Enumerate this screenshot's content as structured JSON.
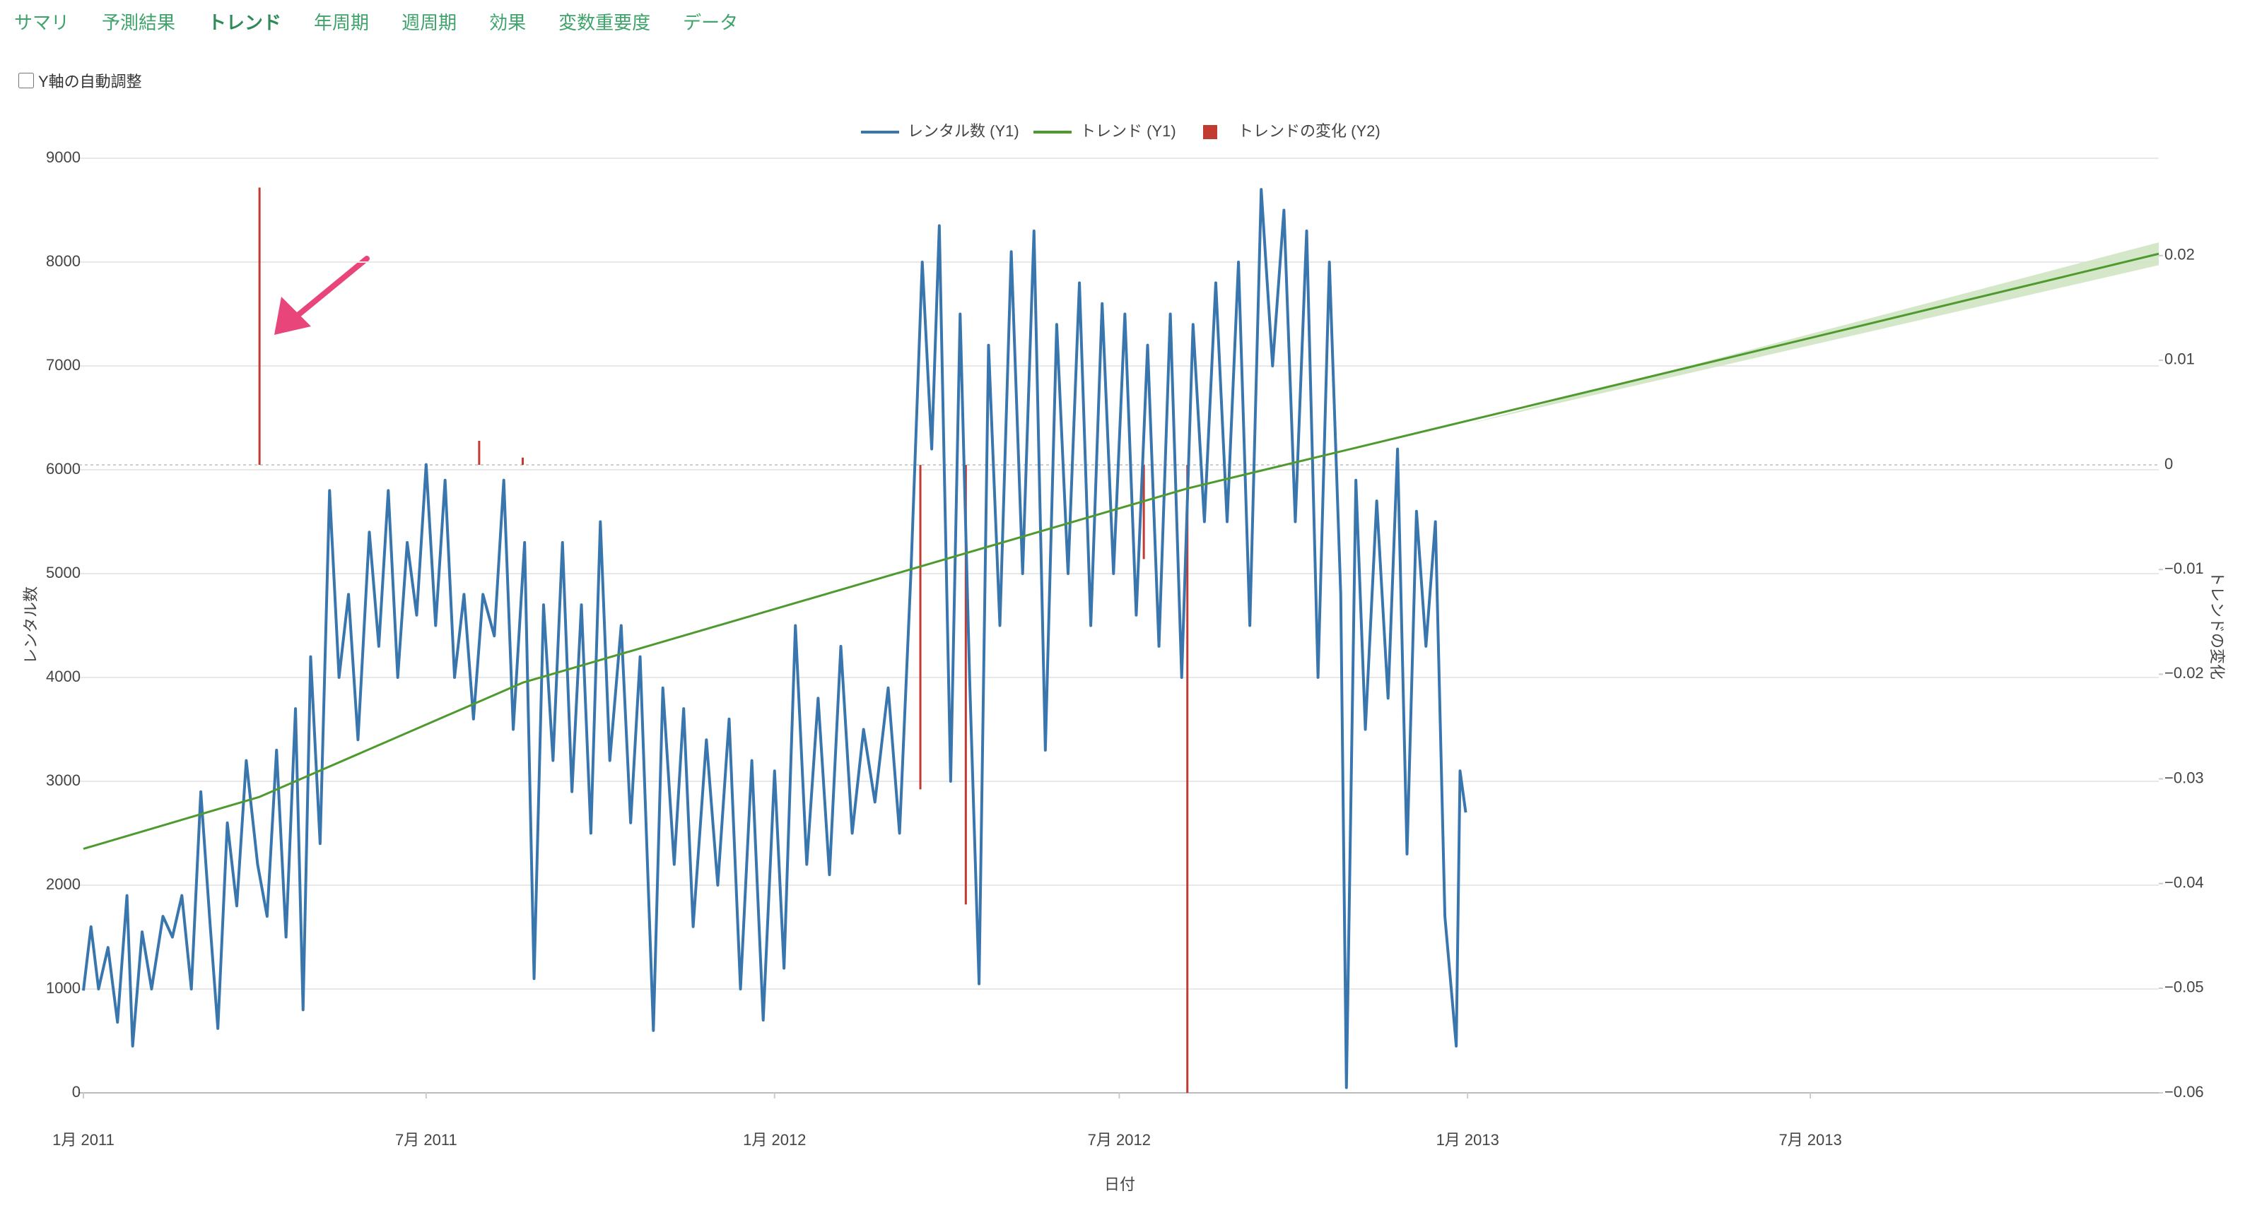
{
  "nav": {
    "tabs": [
      "サマリ",
      "予測結果",
      "トレンド",
      "年周期",
      "週周期",
      "効果",
      "変数重要度",
      "データ"
    ]
  },
  "checkbox": {
    "label": "Y軸の自動調整",
    "checked": false
  },
  "chart_data": {
    "type": "line",
    "xlabel": "日付",
    "ylabel": "レンタル数",
    "y2label": "トレンドの変化",
    "xlim": [
      "2011-01-01",
      "2014-01-01"
    ],
    "xticks": [
      {
        "value": "2011-01-01",
        "label": "1月 2011"
      },
      {
        "value": "2011-07-01",
        "label": "7月 2011"
      },
      {
        "value": "2012-01-01",
        "label": "1月 2012"
      },
      {
        "value": "2012-07-01",
        "label": "7月 2012"
      },
      {
        "value": "2013-01-01",
        "label": "1月 2013"
      },
      {
        "value": "2013-07-01",
        "label": "7月 2013"
      }
    ],
    "ylim": [
      0,
      9000
    ],
    "yticks": [
      0,
      1000,
      2000,
      3000,
      4000,
      5000,
      6000,
      7000,
      8000,
      9000
    ],
    "y2lim": [
      -0.06,
      0.0293
    ],
    "y2ticks": [
      0.02,
      0.01,
      0,
      {
        "value": -0.01,
        "label": "−0.01"
      },
      {
        "value": -0.02,
        "label": "−0.02"
      },
      {
        "value": -0.03,
        "label": "−0.03"
      },
      {
        "value": -0.04,
        "label": "−0.04"
      },
      {
        "value": -0.05,
        "label": "−0.05"
      },
      {
        "value": -0.06,
        "label": "−0.06"
      }
    ],
    "grid": true,
    "legend": "top",
    "series": [
      {
        "name": "レンタル数 (Y1)",
        "type": "line",
        "color": "#3a76ae",
        "x": [
          "2011-01-01",
          "2011-01-05",
          "2011-01-09",
          "2011-01-14",
          "2011-01-19",
          "2011-01-24",
          "2011-01-27",
          "2011-02-01",
          "2011-02-06",
          "2011-02-12",
          "2011-02-17",
          "2011-02-22",
          "2011-02-27",
          "2011-03-04",
          "2011-03-09",
          "2011-03-13",
          "2011-03-18",
          "2011-03-23",
          "2011-03-28",
          "2011-04-03",
          "2011-04-08",
          "2011-04-13",
          "2011-04-18",
          "2011-04-23",
          "2011-04-27",
          "2011-05-01",
          "2011-05-06",
          "2011-05-11",
          "2011-05-16",
          "2011-05-21",
          "2011-05-26",
          "2011-06-01",
          "2011-06-06",
          "2011-06-11",
          "2011-06-16",
          "2011-06-21",
          "2011-06-26",
          "2011-07-01",
          "2011-07-06",
          "2011-07-11",
          "2011-07-16",
          "2011-07-21",
          "2011-07-26",
          "2011-07-31",
          "2011-08-06",
          "2011-08-11",
          "2011-08-16",
          "2011-08-22",
          "2011-08-27",
          "2011-09-01",
          "2011-09-06",
          "2011-09-11",
          "2011-09-16",
          "2011-09-21",
          "2011-09-26",
          "2011-10-01",
          "2011-10-06",
          "2011-10-12",
          "2011-10-17",
          "2011-10-22",
          "2011-10-29",
          "2011-11-03",
          "2011-11-09",
          "2011-11-14",
          "2011-11-19",
          "2011-11-26",
          "2011-12-02",
          "2011-12-08",
          "2011-12-14",
          "2011-12-20",
          "2011-12-26",
          "2012-01-01",
          "2012-01-06",
          "2012-01-12",
          "2012-01-18",
          "2012-01-24",
          "2012-01-30",
          "2012-02-05",
          "2012-02-11",
          "2012-02-17",
          "2012-02-23",
          "2012-03-01",
          "2012-03-07",
          "2012-03-13",
          "2012-03-19",
          "2012-03-24",
          "2012-03-28",
          "2012-04-03",
          "2012-04-08",
          "2012-04-13",
          "2012-04-18",
          "2012-04-23",
          "2012-04-29",
          "2012-05-05",
          "2012-05-11",
          "2012-05-17",
          "2012-05-23",
          "2012-05-29",
          "2012-06-04",
          "2012-06-10",
          "2012-06-16",
          "2012-06-22",
          "2012-06-28",
          "2012-07-04",
          "2012-07-10",
          "2012-07-16",
          "2012-07-22",
          "2012-07-28",
          "2012-08-03",
          "2012-08-09",
          "2012-08-15",
          "2012-08-21",
          "2012-08-27",
          "2012-09-02",
          "2012-09-08",
          "2012-09-14",
          "2012-09-20",
          "2012-09-26",
          "2012-10-02",
          "2012-10-08",
          "2012-10-14",
          "2012-10-20",
          "2012-10-26",
          "2012-10-29",
          "2012-11-03",
          "2012-11-08",
          "2012-11-14",
          "2012-11-20",
          "2012-11-25",
          "2012-11-30",
          "2012-12-05",
          "2012-12-10",
          "2012-12-15",
          "2012-12-20",
          "2012-12-26",
          "2012-12-28",
          "2012-12-31"
        ],
        "values": [
          985,
          1600,
          1000,
          1400,
          680,
          1900,
          450,
          1550,
          1000,
          1700,
          1500,
          1900,
          1000,
          2900,
          1600,
          620,
          2600,
          1800,
          3200,
          2200,
          1700,
          3300,
          1500,
          3700,
          800,
          4200,
          2400,
          5800,
          4000,
          4800,
          3400,
          5400,
          4300,
          5800,
          4000,
          5300,
          4600,
          6050,
          4500,
          5900,
          4000,
          4800,
          3600,
          4800,
          4400,
          5900,
          3500,
          5300,
          1100,
          4700,
          3200,
          5300,
          2900,
          4700,
          2500,
          5500,
          3200,
          4500,
          2600,
          4200,
          600,
          3900,
          2200,
          3700,
          1600,
          3400,
          2000,
          3600,
          1000,
          3200,
          700,
          3100,
          1200,
          4500,
          2200,
          3800,
          2100,
          4300,
          2500,
          3500,
          2800,
          3900,
          2500,
          5000,
          8000,
          6200,
          8350,
          3000,
          7500,
          4000,
          1050,
          7200,
          4500,
          8100,
          5000,
          8300,
          3300,
          7400,
          5000,
          7800,
          4500,
          7600,
          5000,
          7500,
          4600,
          7200,
          4300,
          7500,
          4000,
          7400,
          5500,
          7800,
          5500,
          8000,
          4500,
          8700,
          7000,
          8500,
          5500,
          8300,
          4000,
          8000,
          4800,
          50,
          5900,
          3500,
          5700,
          3800,
          6200,
          2300,
          5600,
          4300,
          5500,
          1700,
          450,
          3100,
          2700
        ]
      },
      {
        "name": "トレンド (Y1)",
        "type": "line",
        "color": "#4f9a2f",
        "x": [
          "2011-01-01",
          "2011-04-04",
          "2011-08-21",
          "2012-08-06",
          "2014-01-01"
        ],
        "values": [
          2350,
          2850,
          3950,
          5820,
          8080
        ],
        "band": {
          "color": "#cfe5c3",
          "x": [
            "2013-01-01",
            "2014-01-01"
          ],
          "upper": [
            6440,
            8190
          ],
          "lower": [
            6440,
            7970
          ]
        }
      },
      {
        "name": "トレンドの変化 (Y2)",
        "type": "bar",
        "axis": "y2",
        "color": "#c23b33",
        "x": [
          "2011-04-04",
          "2011-07-29",
          "2011-08-21",
          "2012-03-18",
          "2012-04-11",
          "2012-07-14",
          "2012-08-06"
        ],
        "values": [
          0.0265,
          0.0023,
          0.0007,
          -0.031,
          -0.042,
          -0.009,
          -0.06
        ]
      }
    ]
  }
}
